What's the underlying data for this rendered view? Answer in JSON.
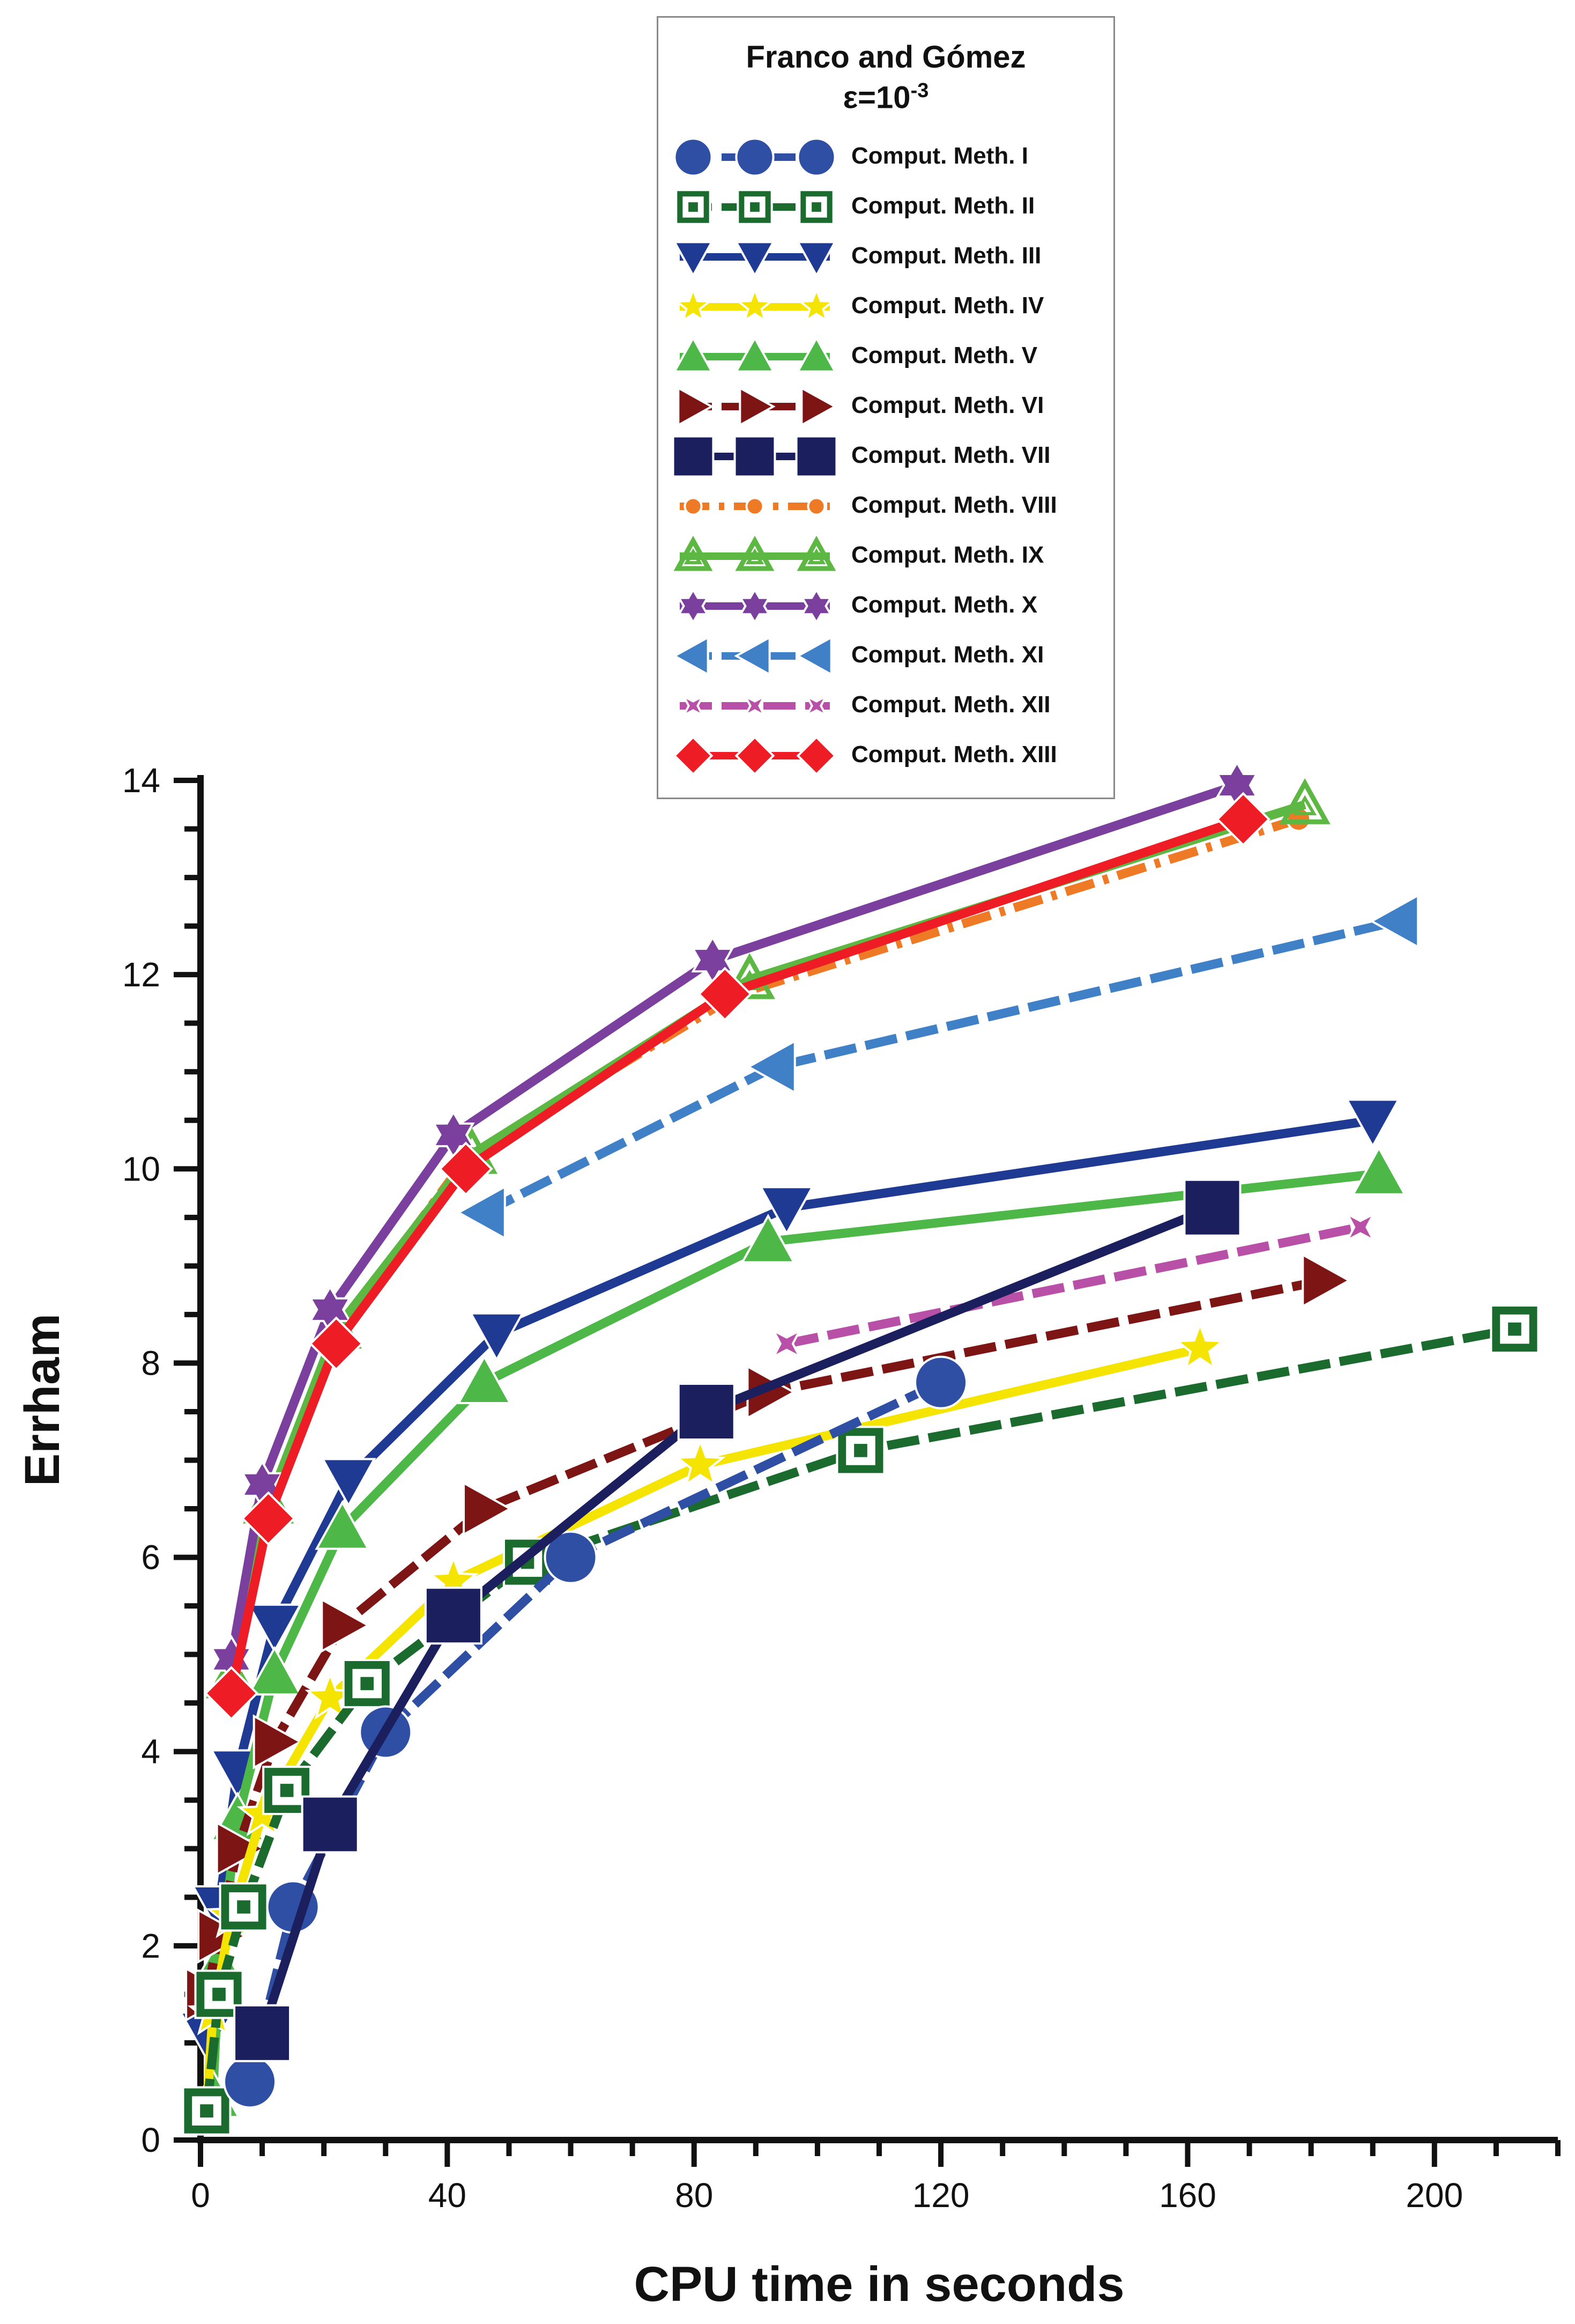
{
  "chart_data": {
    "type": "line",
    "title": "Franco and Gómez",
    "subtitle": "ε=10",
    "subtitle_exponent": "-3",
    "xlabel": "CPU time in seconds",
    "ylabel": "Errham",
    "xlim": [
      0,
      220
    ],
    "ylim": [
      0,
      14
    ],
    "xticks": [
      0,
      40,
      80,
      120,
      160,
      200
    ],
    "yticks": [
      0,
      2,
      4,
      6,
      8,
      10,
      12,
      14
    ],
    "grid": false,
    "legend_position": "top-center",
    "series": [
      {
        "name": "Comput. Meth. I",
        "color": "#2e4fa3",
        "marker": "circle",
        "dash": "dashed",
        "x": [
          8,
          15,
          30,
          60,
          120
        ],
        "y": [
          0.6,
          2.4,
          4.2,
          6.0,
          7.8
        ]
      },
      {
        "name": "Comput. Meth. II",
        "color": "#1a6b2d",
        "marker": "square-dot",
        "dash": "dashed",
        "x": [
          1,
          3,
          7,
          14,
          27,
          53,
          107,
          213
        ],
        "y": [
          0.3,
          1.5,
          2.4,
          3.6,
          4.7,
          5.95,
          7.1,
          8.35
        ]
      },
      {
        "name": "Comput. Meth. III",
        "color": "#1f3a93",
        "marker": "triangle-down",
        "dash": "solid",
        "x": [
          1,
          3,
          6,
          12,
          24,
          48,
          95,
          190
        ],
        "y": [
          1.1,
          2.4,
          3.8,
          5.3,
          6.8,
          8.3,
          9.6,
          10.5
        ]
      },
      {
        "name": "Comput. Meth. IV",
        "color": "#f5e400",
        "marker": "star",
        "dash": "solid",
        "x": [
          1,
          2,
          5,
          10,
          21,
          41,
          81,
          162
        ],
        "y": [
          0.3,
          1.3,
          2.3,
          3.35,
          4.55,
          5.75,
          6.95,
          8.15
        ]
      },
      {
        "name": "Comput. Meth. V",
        "color": "#4db848",
        "marker": "triangle-up",
        "dash": "solid",
        "x": [
          2,
          3,
          6,
          12,
          23,
          46,
          92,
          191
        ],
        "y": [
          0.45,
          1.8,
          3.3,
          4.8,
          6.3,
          7.8,
          9.25,
          9.95
        ]
      },
      {
        "name": "Comput. Meth. VI",
        "color": "#7d1515",
        "marker": "triangle-right",
        "dash": "dashed",
        "x": [
          1,
          3,
          6,
          12,
          23,
          46,
          92,
          182
        ],
        "y": [
          1.5,
          2.1,
          3.0,
          4.1,
          5.3,
          6.5,
          7.7,
          8.85
        ]
      },
      {
        "name": "Comput. Meth. VII",
        "color": "#1c1f5e",
        "marker": "square",
        "dash": "solid",
        "x": [
          10,
          21,
          41,
          82,
          164
        ],
        "y": [
          1.1,
          3.25,
          5.4,
          7.5,
          9.6
        ]
      },
      {
        "name": "Comput. Meth. VIII",
        "color": "#ef7a25",
        "marker": "circle-small",
        "dash": "dashdot",
        "x": [
          5,
          11,
          22,
          43,
          87,
          178
        ],
        "y": [
          4.7,
          6.5,
          8.3,
          10.1,
          11.8,
          13.6
        ]
      },
      {
        "name": "Comput. Meth. IX",
        "color": "#5cb843",
        "marker": "triangle-open",
        "dash": "solid",
        "x": [
          5,
          11,
          22,
          44,
          89,
          179
        ],
        "y": [
          4.75,
          6.55,
          8.35,
          10.15,
          11.95,
          13.75
        ]
      },
      {
        "name": "Comput. Meth. X",
        "color": "#7b3f9e",
        "marker": "star6",
        "dash": "solid",
        "x": [
          5,
          10,
          21,
          41,
          83,
          168
        ],
        "y": [
          4.95,
          6.75,
          8.55,
          10.35,
          12.15,
          13.95
        ]
      },
      {
        "name": "Comput. Meth. XI",
        "color": "#3f80c6",
        "marker": "triangle-left",
        "dash": "dashed",
        "x": [
          46,
          93,
          194
        ],
        "y": [
          9.55,
          11.05,
          12.55
        ]
      },
      {
        "name": "Comput. Meth. XII",
        "color": "#b850a8",
        "marker": "cross",
        "dash": "dashed",
        "x": [
          95,
          188
        ],
        "y": [
          8.2,
          9.4
        ]
      },
      {
        "name": "Comput. Meth. XIII",
        "color": "#ee1c24",
        "marker": "diamond",
        "dash": "solid",
        "x": [
          5,
          11,
          22,
          43,
          85,
          169
        ],
        "y": [
          4.6,
          6.4,
          8.2,
          10.0,
          11.8,
          13.6
        ]
      }
    ]
  }
}
